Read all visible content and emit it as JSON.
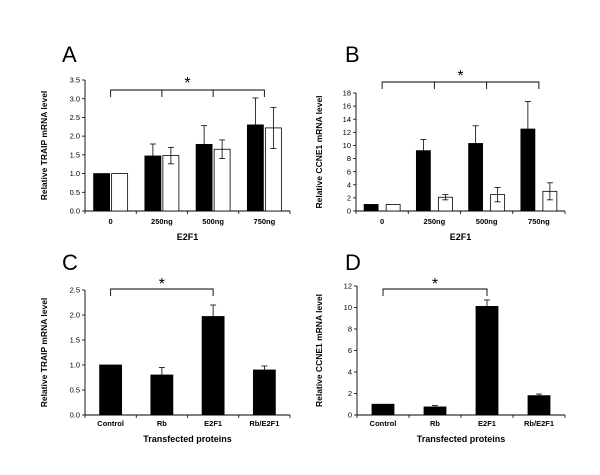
{
  "chart_data": [
    {
      "panel": "A",
      "type": "bar",
      "xlabel": "E2F1",
      "ylabel": "Relative TRAIP mRNA level",
      "ylim": [
        0,
        3.5
      ],
      "yticks": [
        "0.0",
        "0.5",
        "1.0",
        "1.5",
        "2.0",
        "2.5",
        "3.0",
        "3.5"
      ],
      "categories": [
        "0",
        "250ng",
        "500ng",
        "750ng"
      ],
      "series": [
        {
          "name": "black",
          "color": "#000000",
          "values": [
            1.0,
            1.47,
            1.78,
            2.3
          ],
          "errors": [
            0,
            0.32,
            0.5,
            0.72
          ]
        },
        {
          "name": "white",
          "color": "#ffffff",
          "values": [
            1.0,
            1.48,
            1.65,
            2.22
          ],
          "errors": [
            0,
            0.22,
            0.25,
            0.55
          ]
        }
      ],
      "significance": {
        "label": "*",
        "from": 0,
        "to": 3,
        "ticks": [
          1,
          2
        ]
      }
    },
    {
      "panel": "B",
      "type": "bar",
      "xlabel": "E2F1",
      "ylabel": "Relative CCNE1 mRNA level",
      "ylim": [
        0,
        18
      ],
      "yticks": [
        "0",
        "2",
        "4",
        "6",
        "8",
        "10",
        "12",
        "14",
        "16",
        "18"
      ],
      "categories": [
        "0",
        "250ng",
        "500ng",
        "750ng"
      ],
      "series": [
        {
          "name": "black",
          "color": "#000000",
          "values": [
            1.0,
            9.2,
            10.3,
            12.5
          ],
          "errors": [
            0,
            1.7,
            2.7,
            4.2
          ]
        },
        {
          "name": "white",
          "color": "#ffffff",
          "values": [
            1.0,
            2.1,
            2.5,
            3.0
          ],
          "errors": [
            0,
            0.4,
            1.1,
            1.3
          ]
        }
      ],
      "significance": {
        "label": "*",
        "from": 0,
        "to": 3,
        "ticks": [
          1,
          2
        ]
      }
    },
    {
      "panel": "C",
      "type": "bar",
      "xlabel": "Transfected proteins",
      "ylabel": "Relative TRAIP mRNA level",
      "ylim": [
        0,
        2.5
      ],
      "yticks": [
        "0.0",
        "0.5",
        "1.0",
        "1.5",
        "2.0",
        "2.5"
      ],
      "categories": [
        "Control",
        "Rb",
        "E2F1",
        "Rb/E2F1"
      ],
      "series": [
        {
          "name": "black",
          "color": "#000000",
          "values": [
            1.0,
            0.8,
            1.97,
            0.9
          ],
          "errors": [
            0,
            0.15,
            0.23,
            0.08
          ]
        }
      ],
      "significance": {
        "label": "*",
        "from": 0,
        "to": 2,
        "ticks": []
      }
    },
    {
      "panel": "D",
      "type": "bar",
      "xlabel": "Transfected proteins",
      "ylabel": "Relative CCNE1 mRNA level",
      "ylim": [
        0,
        12
      ],
      "yticks": [
        "0",
        "2",
        "4",
        "6",
        "8",
        "10",
        "12"
      ],
      "categories": [
        "Control",
        "Rb",
        "E2F1",
        "Rb/E2F1"
      ],
      "series": [
        {
          "name": "black",
          "color": "#000000",
          "values": [
            1.0,
            0.75,
            10.1,
            1.8
          ],
          "errors": [
            0,
            0.12,
            0.6,
            0.15
          ]
        }
      ],
      "significance": {
        "label": "*",
        "from": 0,
        "to": 2,
        "ticks": []
      }
    }
  ]
}
